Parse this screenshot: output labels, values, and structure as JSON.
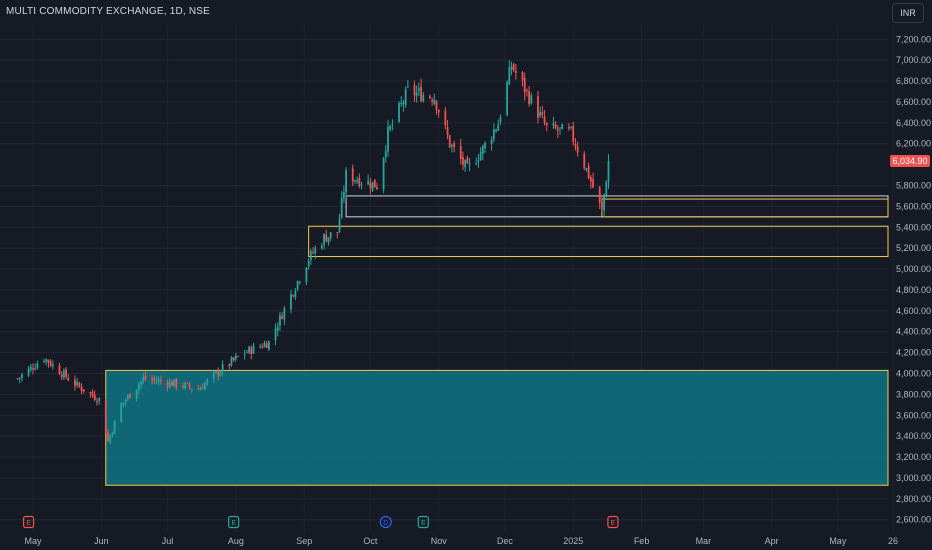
{
  "header": {
    "title": "MULTI COMMODITY EXCHANGE, 1D, NSE",
    "currency": "INR"
  },
  "colors": {
    "up": "#26a69a",
    "down": "#ef5350",
    "zone_fill": "#0e7482",
    "zone_border": "#f2c94c",
    "line_white": "#d1d4dc",
    "line_yellow": "#f2e28a"
  },
  "chart_data": {
    "type": "candlestick",
    "y_scale": "linear",
    "ylim": [
      2550,
      7320
    ],
    "y_ticks": [
      {
        "value": 7200,
        "label": "7,200.00"
      },
      {
        "value": 7000,
        "label": "7,000.00"
      },
      {
        "value": 6800,
        "label": "6,800.00"
      },
      {
        "value": 6600,
        "label": "6,600.00"
      },
      {
        "value": 6400,
        "label": "6,400.00"
      },
      {
        "value": 6200,
        "label": "6,200.00"
      },
      {
        "value": 5800,
        "label": "5,800.00"
      },
      {
        "value": 5600,
        "label": "5,600.00"
      },
      {
        "value": 5400,
        "label": "5,400.00"
      },
      {
        "value": 5200,
        "label": "5,200.00"
      },
      {
        "value": 5000,
        "label": "5,000.00"
      },
      {
        "value": 4800,
        "label": "4,800.00"
      },
      {
        "value": 4600,
        "label": "4,600.00"
      },
      {
        "value": 4400,
        "label": "4,400.00"
      },
      {
        "value": 4200,
        "label": "4,200.00"
      },
      {
        "value": 4000,
        "label": "4,000.00"
      },
      {
        "value": 3800,
        "label": "3,800.00"
      },
      {
        "value": 3600,
        "label": "3,600.00"
      },
      {
        "value": 3400,
        "label": "3,400.00"
      },
      {
        "value": 3200,
        "label": "3,200.00"
      },
      {
        "value": 3000,
        "label": "3,000.00"
      },
      {
        "value": 2800,
        "label": "2,800.00"
      },
      {
        "value": 2600,
        "label": "2,600.00"
      }
    ],
    "x_ticks": [
      {
        "date": "2024-05-01",
        "label": "May"
      },
      {
        "date": "2024-06-01",
        "label": "Jun"
      },
      {
        "date": "2024-07-01",
        "label": "Jul"
      },
      {
        "date": "2024-08-01",
        "label": "Aug"
      },
      {
        "date": "2024-09-01",
        "label": "Sep"
      },
      {
        "date": "2024-10-01",
        "label": "Oct"
      },
      {
        "date": "2024-11-01",
        "label": "Nov"
      },
      {
        "date": "2024-12-01",
        "label": "Dec"
      },
      {
        "date": "2025-01-01",
        "label": "2025"
      },
      {
        "date": "2025-02-01",
        "label": "Feb"
      },
      {
        "date": "2025-03-01",
        "label": "Mar"
      },
      {
        "date": "2025-04-01",
        "label": "Apr"
      },
      {
        "date": "2025-05-01",
        "label": "May"
      },
      {
        "date": "2025-05-26",
        "label": "26"
      }
    ],
    "last_price": {
      "value": 6034.9,
      "label": "6,034.90"
    },
    "anchors": [
      {
        "date": "2024-04-24",
        "close": 3950
      },
      {
        "date": "2024-05-06",
        "close": 4150
      },
      {
        "date": "2024-05-20",
        "close": 3900
      },
      {
        "date": "2024-05-31",
        "close": 3750
      },
      {
        "date": "2024-06-04",
        "close": 3350
      },
      {
        "date": "2024-06-10",
        "close": 3700
      },
      {
        "date": "2024-06-20",
        "close": 3950
      },
      {
        "date": "2024-07-05",
        "close": 3900
      },
      {
        "date": "2024-07-15",
        "close": 3850
      },
      {
        "date": "2024-07-26",
        "close": 4050
      },
      {
        "date": "2024-08-05",
        "close": 4200
      },
      {
        "date": "2024-08-16",
        "close": 4300
      },
      {
        "date": "2024-08-26",
        "close": 4750
      },
      {
        "date": "2024-09-03",
        "close": 5100
      },
      {
        "date": "2024-09-10",
        "close": 5300
      },
      {
        "date": "2024-09-16",
        "close": 5350
      },
      {
        "date": "2024-09-20",
        "close": 5900
      },
      {
        "date": "2024-09-27",
        "close": 5850
      },
      {
        "date": "2024-10-04",
        "close": 5800
      },
      {
        "date": "2024-10-09",
        "close": 6300
      },
      {
        "date": "2024-10-18",
        "close": 6700
      },
      {
        "date": "2024-10-30",
        "close": 6650
      },
      {
        "date": "2024-11-06",
        "close": 6200
      },
      {
        "date": "2024-11-14",
        "close": 5950
      },
      {
        "date": "2024-11-21",
        "close": 6150
      },
      {
        "date": "2024-11-28",
        "close": 6400
      },
      {
        "date": "2024-12-04",
        "close": 6950
      },
      {
        "date": "2024-12-12",
        "close": 6650
      },
      {
        "date": "2024-12-20",
        "close": 6350
      },
      {
        "date": "2024-12-31",
        "close": 6300
      },
      {
        "date": "2025-01-08",
        "close": 5900
      },
      {
        "date": "2025-01-14",
        "close": 5550
      },
      {
        "date": "2025-01-17",
        "close": 6034.9
      }
    ],
    "zones": [
      {
        "name": "demand-zone",
        "from_date": "2024-06-03",
        "to_date": "2025-05-31",
        "top": 4030,
        "bottom": 2930,
        "filled": true
      },
      {
        "name": "upper-box",
        "from_date": "2024-09-20",
        "to_date": "2025-05-31",
        "top": 5700,
        "bottom": 5500,
        "filled": false
      },
      {
        "name": "lower-box",
        "from_date": "2024-09-03",
        "to_date": "2025-05-31",
        "top": 5410,
        "bottom": 5120,
        "filled": false
      },
      {
        "name": "recent-box",
        "from_date": "2025-01-14",
        "to_date": "2025-05-31",
        "top": 5670,
        "bottom": 5500,
        "filled": false
      }
    ],
    "event_markers": [
      {
        "date": "2024-04-29",
        "letter": "E",
        "color": "#ef5350"
      },
      {
        "date": "2024-07-31",
        "letter": "E",
        "color": "#26a69a"
      },
      {
        "date": "2024-10-08",
        "letter": "D",
        "color": "#2962ff"
      },
      {
        "date": "2024-10-25",
        "letter": "E",
        "color": "#26a69a"
      },
      {
        "date": "2025-01-19",
        "letter": "E",
        "color": "#ef5350"
      }
    ]
  }
}
